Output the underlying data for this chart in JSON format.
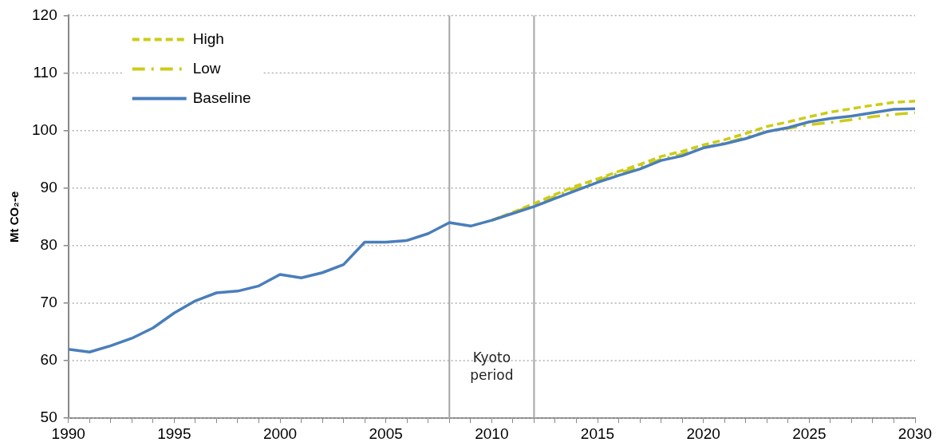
{
  "chart_data": {
    "type": "line",
    "ylabel": "Mt CO₂-e",
    "xlim": [
      1990,
      2030
    ],
    "xticks": [
      1990,
      {
        "value": 1991,
        "label": null
      },
      {
        "value": 1992,
        "label": null
      },
      {
        "value": 1993,
        "label": null
      },
      {
        "value": 1994,
        "label": null
      },
      1995,
      {
        "value": 1996,
        "label": null
      },
      {
        "value": 1997,
        "label": null
      },
      {
        "value": 1998,
        "label": null
      },
      {
        "value": 1999,
        "label": null
      },
      2000,
      {
        "value": 2001,
        "label": null
      },
      {
        "value": 2002,
        "label": null
      },
      {
        "value": 2003,
        "label": null
      },
      {
        "value": 2004,
        "label": null
      },
      2005,
      {
        "value": 2006,
        "label": null
      },
      {
        "value": 2007,
        "label": null
      },
      {
        "value": 2008,
        "label": null
      },
      {
        "value": 2009,
        "label": null
      },
      2010,
      {
        "value": 2011,
        "label": null
      },
      {
        "value": 2012,
        "label": null
      },
      {
        "value": 2013,
        "label": null
      },
      {
        "value": 2014,
        "label": null
      },
      2015,
      {
        "value": 2016,
        "label": null
      },
      {
        "value": 2017,
        "label": null
      },
      {
        "value": 2018,
        "label": null
      },
      {
        "value": 2019,
        "label": null
      },
      2020,
      {
        "value": 2021,
        "label": null
      },
      {
        "value": 2022,
        "label": null
      },
      {
        "value": 2023,
        "label": null
      },
      {
        "value": 2024,
        "label": null
      },
      2025,
      {
        "value": 2026,
        "label": null
      },
      {
        "value": 2027,
        "label": null
      },
      {
        "value": 2028,
        "label": null
      },
      {
        "value": 2029,
        "label": null
      },
      2030
    ],
    "ylim": [
      50,
      120
    ],
    "yticks": [
      50,
      60,
      70,
      80,
      90,
      100,
      110,
      120
    ],
    "grid": "y",
    "legend": "top left",
    "marker": "none",
    "series": [
      {
        "name": "High",
        "color": "#cccc1a",
        "line_style": "dashed",
        "x": [
          2010,
          2011,
          2012,
          2013,
          2014,
          2015,
          2016,
          2017,
          2018,
          2019,
          2020,
          2021,
          2022,
          2023,
          2024,
          2025,
          2026,
          2027,
          2028,
          2029,
          2030
        ],
        "values": [
          84.4,
          85.8,
          87.3,
          88.9,
          90.4,
          91.6,
          92.9,
          94.1,
          95.5,
          96.4,
          97.5,
          98.4,
          99.5,
          100.7,
          101.5,
          102.4,
          103.2,
          103.8,
          104.4,
          104.9,
          105.1
        ]
      },
      {
        "name": "Low",
        "color": "#cccc1a",
        "line_style": "dashdot",
        "x": [
          2010,
          2011,
          2012,
          2013,
          2014,
          2015,
          2016,
          2017,
          2018,
          2019,
          2020,
          2021,
          2022,
          2023,
          2024,
          2025,
          2026,
          2027,
          2028,
          2029,
          2030
        ],
        "values": [
          84.4,
          85.7,
          87.1,
          88.6,
          90.1,
          91.3,
          92.6,
          93.7,
          95.0,
          95.9,
          97.0,
          97.8,
          98.8,
          99.8,
          100.4,
          101.0,
          101.4,
          101.9,
          102.4,
          102.8,
          103.1
        ]
      },
      {
        "name": "Baseline",
        "color": "#4a7ebb",
        "line_style": "solid",
        "x": [
          1990,
          1991,
          1992,
          1993,
          1994,
          1995,
          1996,
          1997,
          1998,
          1999,
          2000,
          2001,
          2002,
          2003,
          2004,
          2005,
          2006,
          2007,
          2008,
          2009,
          2010,
          2011,
          2012,
          2013,
          2014,
          2015,
          2016,
          2017,
          2018,
          2019,
          2020,
          2021,
          2022,
          2023,
          2024,
          2025,
          2026,
          2027,
          2028,
          2029,
          2030
        ],
        "values": [
          62.0,
          61.5,
          62.6,
          63.9,
          65.7,
          68.3,
          70.4,
          71.8,
          72.1,
          73.0,
          75.0,
          74.4,
          75.3,
          76.7,
          80.6,
          80.6,
          80.9,
          82.1,
          84.0,
          83.4,
          84.4,
          85.6,
          86.8,
          88.2,
          89.6,
          91.0,
          92.2,
          93.3,
          94.8,
          95.6,
          97.0,
          97.7,
          98.6,
          99.8,
          100.5,
          101.5,
          102.1,
          102.5,
          103.1,
          103.7,
          103.8
        ]
      }
    ],
    "ref_lines": [
      {
        "axis": "x",
        "value": 2008,
        "color": "#a6a6a6"
      },
      {
        "axis": "x",
        "value": 2012,
        "color": "#a6a6a6"
      }
    ],
    "annotations": [
      "Kyoto period"
    ]
  }
}
